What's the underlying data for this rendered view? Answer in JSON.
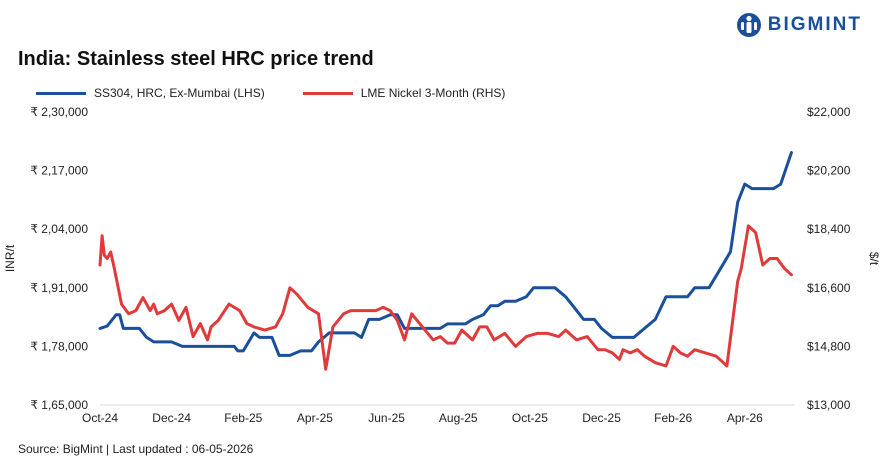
{
  "title": "India: Stainless steel HRC price trend",
  "brand": {
    "name": "BIGMINT",
    "logo_icon": "bigmint-logo-icon",
    "color": "#1a4f9c"
  },
  "source": "Source: BigMint | Last updated : 06-05-2026",
  "chart_data": {
    "type": "line",
    "title": "India: Stainless steel HRC price trend",
    "ylabel": "INR/t",
    "y2label": "$/t",
    "ylim": [
      165000,
      230000
    ],
    "y2lim": [
      13000,
      22000
    ],
    "yticks": [
      "₹ 1,65,000",
      "₹ 1,78,000",
      "₹ 1,91,000",
      "₹ 2,04,000",
      "₹ 2,17,000",
      "₹ 2,30,000"
    ],
    "y2ticks": [
      "$13,000",
      "$14,800",
      "$16,600",
      "$18,400",
      "$20,200",
      "$22,000"
    ],
    "xticks": [
      "Oct-24",
      "Dec-24",
      "Feb-25",
      "Apr-25",
      "Jun-25",
      "Aug-25",
      "Oct-25",
      "Dec-25",
      "Feb-26",
      "Apr-26"
    ],
    "xrange": [
      0,
      19.4
    ],
    "grid": false,
    "legend_position": "top-left",
    "series": [
      {
        "name": "SS304, HRC, Ex-Mumbai (LHS)",
        "axis": "left",
        "color": "#1a4f9c",
        "x": [
          0,
          0.2,
          0.45,
          0.55,
          0.65,
          0.8,
          1.1,
          1.3,
          1.5,
          1.7,
          2.0,
          2.3,
          2.6,
          2.9,
          3.2,
          3.5,
          3.75,
          3.85,
          4.0,
          4.3,
          4.45,
          4.6,
          4.8,
          5.0,
          5.3,
          5.6,
          5.9,
          6.1,
          6.4,
          6.7,
          6.9,
          7.1,
          7.3,
          7.5,
          7.8,
          8.1,
          8.3,
          8.5,
          8.7,
          9.0,
          9.3,
          9.5,
          9.7,
          10.0,
          10.2,
          10.4,
          10.7,
          10.9,
          11.1,
          11.3,
          11.6,
          11.9,
          12.1,
          12.4,
          12.7,
          13.0,
          13.2,
          13.5,
          13.8,
          14.0,
          14.3,
          14.6,
          14.9,
          15.2,
          15.5,
          15.8,
          16.0,
          16.2,
          16.4,
          16.6,
          16.8,
          17.0,
          17.3,
          17.6,
          17.8,
          18.0,
          18.2,
          18.5,
          18.8,
          19.0,
          19.3
        ],
        "values": [
          182000,
          182500,
          185000,
          185000,
          182000,
          182000,
          182000,
          180000,
          179000,
          179000,
          179000,
          178000,
          178000,
          178000,
          178000,
          178000,
          178000,
          177000,
          177000,
          181000,
          180000,
          180000,
          180000,
          176000,
          176000,
          177000,
          177000,
          179000,
          181000,
          181000,
          181000,
          181000,
          180000,
          184000,
          184000,
          185000,
          185000,
          182000,
          182000,
          182000,
          182000,
          182000,
          183000,
          183000,
          183000,
          184000,
          185000,
          187000,
          187000,
          188000,
          188000,
          189000,
          191000,
          191000,
          191000,
          189000,
          187000,
          184000,
          184000,
          182000,
          180000,
          180000,
          180000,
          182000,
          184000,
          189000,
          189000,
          189000,
          189000,
          191000,
          191000,
          191000,
          195000,
          199000,
          210000,
          214000,
          213000,
          213000,
          213000,
          214000,
          221000
        ]
      },
      {
        "name": "LME Nickel 3-Month (RHS)",
        "axis": "right",
        "color": "#e03a3a",
        "x": [
          0,
          0.06,
          0.12,
          0.2,
          0.3,
          0.4,
          0.6,
          0.8,
          1.0,
          1.2,
          1.4,
          1.5,
          1.6,
          1.8,
          2.0,
          2.2,
          2.4,
          2.6,
          2.8,
          3.0,
          3.1,
          3.3,
          3.6,
          3.9,
          4.1,
          4.3,
          4.6,
          4.9,
          5.1,
          5.3,
          5.5,
          5.8,
          6.1,
          6.3,
          6.5,
          6.8,
          7.0,
          7.2,
          7.4,
          7.7,
          7.9,
          8.1,
          8.3,
          8.5,
          8.7,
          9.0,
          9.3,
          9.5,
          9.7,
          9.9,
          10.1,
          10.4,
          10.6,
          10.8,
          11.0,
          11.3,
          11.6,
          11.9,
          12.2,
          12.5,
          12.8,
          13.0,
          13.3,
          13.6,
          13.9,
          14.1,
          14.3,
          14.5,
          14.6,
          14.8,
          15.0,
          15.2,
          15.5,
          15.8,
          16.0,
          16.2,
          16.4,
          16.6,
          16.9,
          17.2,
          17.5,
          17.8,
          17.9,
          18.1,
          18.3,
          18.5,
          18.7,
          18.9,
          19.1,
          19.3
        ],
        "values": [
          17300,
          18200,
          17600,
          17500,
          17700,
          17200,
          16100,
          15800,
          15900,
          16300,
          15900,
          16100,
          15800,
          15900,
          16100,
          15600,
          16000,
          15100,
          15500,
          15000,
          15400,
          15600,
          16100,
          15900,
          15500,
          15400,
          15300,
          15400,
          15800,
          16600,
          16400,
          16000,
          15800,
          14100,
          15400,
          15800,
          15900,
          15900,
          15900,
          15900,
          16000,
          15900,
          15600,
          15000,
          15800,
          15400,
          15000,
          15100,
          14900,
          14900,
          15300,
          15000,
          15400,
          15400,
          15000,
          15200,
          14800,
          15100,
          15200,
          15200,
          15100,
          15300,
          15000,
          15100,
          14700,
          14700,
          14600,
          14400,
          14700,
          14600,
          14700,
          14500,
          14300,
          14200,
          14800,
          14600,
          14500,
          14700,
          14600,
          14500,
          14200,
          16800,
          17200,
          18500,
          18300,
          17300,
          17500,
          17500,
          17200,
          17000
        ]
      }
    ]
  }
}
